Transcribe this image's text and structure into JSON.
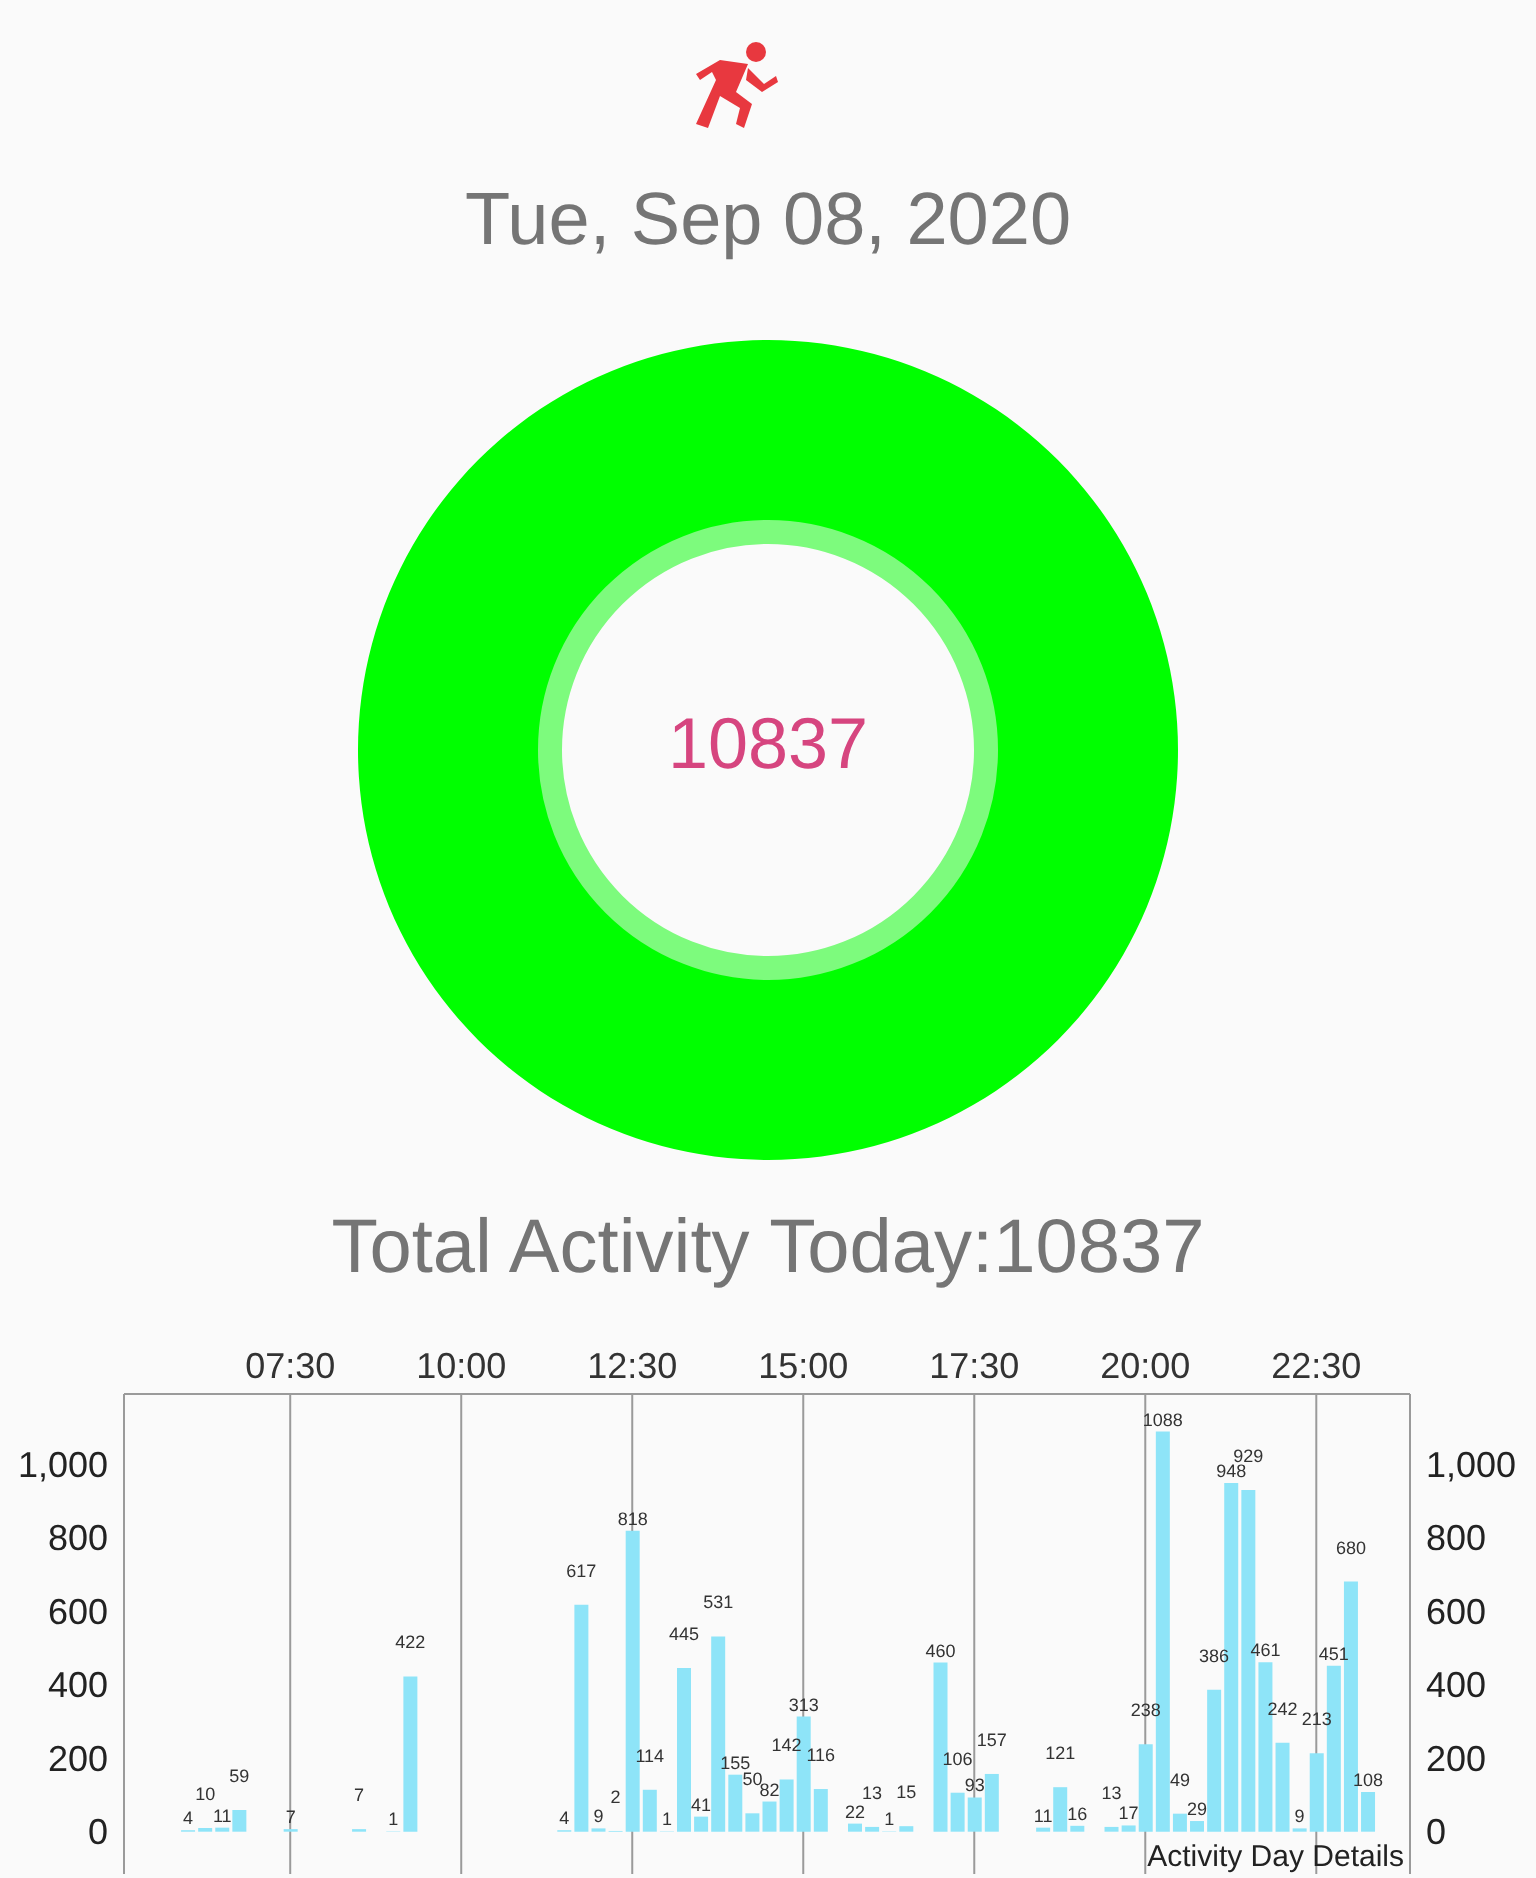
{
  "chart_data": [
    {
      "type": "pie",
      "title": "Tue, Sep 08, 2020",
      "categories": [
        null
      ],
      "values": [
        100
      ],
      "colors": [
        "#00ff00"
      ],
      "annotations": [
        "10837"
      ]
    },
    {
      "type": "bar",
      "title": "Total Activity Today:10837",
      "x": [
        6,
        6.25,
        6.5,
        6.75,
        7.5,
        8.5,
        9,
        9.25,
        11.5,
        11.75,
        12,
        12.25,
        12.5,
        12.75,
        13,
        13.25,
        13.5,
        13.75,
        14,
        14.25,
        14.5,
        14.75,
        15,
        15.25,
        15.75,
        16,
        16.25,
        16.5,
        17,
        17.25,
        17.5,
        17.75,
        18.5,
        18.75,
        19,
        19.5,
        19.75,
        20,
        20.25,
        20.5,
        20.75,
        21,
        21.25,
        21.5,
        21.75,
        22,
        22.25,
        22.5,
        22.75,
        23,
        23.25
      ],
      "values": [
        4,
        10,
        11,
        59,
        7,
        7,
        1,
        422,
        4,
        617,
        9,
        2,
        818,
        114,
        1,
        445,
        41,
        531,
        155,
        50,
        82,
        142,
        313,
        116,
        22,
        13,
        1,
        15,
        460,
        106,
        93,
        157,
        11,
        121,
        16,
        13,
        17,
        238,
        1088,
        49,
        29,
        386,
        948,
        929,
        461,
        242,
        9,
        213,
        451,
        680,
        108
      ],
      "color": "#8ee4f8",
      "data_labels": true,
      "grid": true,
      "xlim": [
        5.07,
        23.87
      ],
      "xticks": [
        {
          "value": 7.5,
          "label": "07:30"
        },
        {
          "value": 10,
          "label": "10:00"
        },
        {
          "value": 12.5,
          "label": "12:30"
        },
        {
          "value": 15,
          "label": "15:00"
        },
        {
          "value": 17.5,
          "label": "17:30"
        },
        {
          "value": 20,
          "label": "20:00"
        },
        {
          "value": 22.5,
          "label": "22:30"
        }
      ],
      "ylim": [
        -115,
        1190
      ],
      "yticks": [
        0,
        200,
        400,
        600,
        800,
        {
          "value": 1000,
          "label": "1,000"
        }
      ],
      "y2lim": [
        -115,
        1190
      ],
      "y2ticks": [
        0,
        200,
        400,
        600,
        800,
        {
          "value": 1000,
          "label": "1,000"
        }
      ],
      "annotations": [
        "Activity Day Details"
      ]
    }
  ]
}
